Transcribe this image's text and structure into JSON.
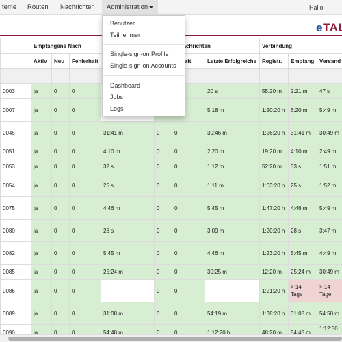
{
  "nav": {
    "items": [
      "teme",
      "Routen",
      "Nachrichten",
      "Administration"
    ],
    "user": "Hallo Admin"
  },
  "brand": {
    "e": "e",
    "rest": "TAL"
  },
  "dropdown": {
    "items": [
      "Benutzer",
      "Teilnehmer",
      "Single-sign-on Profile",
      "Single-sign-on Accounts",
      "Dashboard",
      "Jobs",
      "Logs"
    ]
  },
  "table": {
    "groups": [
      "Empfangene Nach",
      "e Nachrichten",
      "Verbindung"
    ],
    "columns": [
      "Aktiv",
      "Neu",
      "Fehlerhaft",
      "",
      "",
      "lerhaft",
      "Letzte Erfolgreiche",
      "Registr.",
      "Empfang",
      "Versand"
    ],
    "rows": [
      {
        "id": "0003",
        "aktiv": "ja",
        "neu": "0",
        "fehl": "0",
        "c4": "",
        "c5": "",
        "c6": "",
        "letzte": "20 s",
        "reg": "55:20 m",
        "emp": "2:21 m",
        "ver": "47 s"
      },
      {
        "id": "0007",
        "aktiv": "ja",
        "neu": "0",
        "fehl": "0",
        "c4": "",
        "c5": "",
        "c6": "",
        "letzte": "5:18 m",
        "reg": "1:20:20 h",
        "emp": "6:20 m",
        "ver": "5:49 m"
      },
      {
        "id": "0045",
        "aktiv": "ja",
        "neu": "0",
        "fehl": "0",
        "c4": "31:41 m",
        "c5": "0",
        "c6": "0",
        "letzte": "30:46 m",
        "reg": "1:26:20 h",
        "emp": "31:41 m",
        "ver": "30:49 m"
      },
      {
        "id": "0051",
        "aktiv": "ja",
        "neu": "0",
        "fehl": "0",
        "c4": "4:10 m",
        "c5": "0",
        "c6": "0",
        "letzte": "2:20 m",
        "reg": "19:20 m",
        "emp": "4:10 m",
        "ver": "2:49 m"
      },
      {
        "id": "0053",
        "aktiv": "ja",
        "neu": "0",
        "fehl": "0",
        "c4": "32 s",
        "c5": "0",
        "c6": "0",
        "letzte": "1:12 m",
        "reg": "52:20 m",
        "emp": "33 s",
        "ver": "1:51 m"
      },
      {
        "id": "0054",
        "aktiv": "ja",
        "neu": "0",
        "fehl": "0",
        "c4": "25 s",
        "c5": "0",
        "c6": "0",
        "letzte": "1:11 m",
        "reg": "1:03:20 h",
        "emp": "25 s",
        "ver": "1:52 m"
      },
      {
        "id": "0075",
        "aktiv": "ja",
        "neu": "0",
        "fehl": "0",
        "c4": "4:46 m",
        "c5": "0",
        "c6": "0",
        "letzte": "5:45 m",
        "reg": "1:47:20 h",
        "emp": "4:46 m",
        "ver": "5:49 m"
      },
      {
        "id": "0080",
        "aktiv": "ja",
        "neu": "0",
        "fehl": "0",
        "c4": "28 s",
        "c5": "0",
        "c6": "0",
        "letzte": "3:09 m",
        "reg": "1:20:20 h",
        "emp": "28 s",
        "ver": "3:47 m"
      },
      {
        "id": "0082",
        "aktiv": "ja",
        "neu": "0",
        "fehl": "0",
        "c4": "5:45 m",
        "c5": "0",
        "c6": "0",
        "letzte": "4:46 m",
        "reg": "1:23:20 h",
        "emp": "5:45 m",
        "ver": "4:49 m"
      },
      {
        "id": "0085",
        "aktiv": "ja",
        "neu": "0",
        "fehl": "0",
        "c4": "25:24 m",
        "c5": "0",
        "c6": "0",
        "letzte": "30:25 m",
        "reg": "12:20 m",
        "emp": "25:24 m",
        "ver": "30:49 m"
      },
      {
        "id": "0086",
        "aktiv": "ja",
        "neu": "0",
        "fehl": "0",
        "c4": "",
        "c5": "0",
        "c6": "0",
        "letzte": "",
        "reg": "1:21:20 h",
        "emp": "> 14 Tage",
        "ver": "> 14 Tage"
      },
      {
        "id": "0089",
        "aktiv": "ja",
        "neu": "0",
        "fehl": "0",
        "c4": "31:08 m",
        "c5": "0",
        "c6": "0",
        "letzte": "54:19 m",
        "reg": "1:38:20 h",
        "emp": "31:08 m",
        "ver": "54:50 m"
      },
      {
        "id": "0090",
        "aktiv": "ja",
        "neu": "0",
        "fehl": "0",
        "c4": "54:48 m",
        "c5": "0",
        "c6": "0",
        "letzte": "1:12:20 h",
        "reg": "48:20 m",
        "emp": "54:48 m",
        "ver": "1:12:50 m"
      }
    ]
  },
  "colors": {
    "brand_red": "#8c1d3c",
    "brand_blue": "#1f4f9c",
    "cell_green": "#d8eed3",
    "cell_red": "#f0d4d4"
  }
}
